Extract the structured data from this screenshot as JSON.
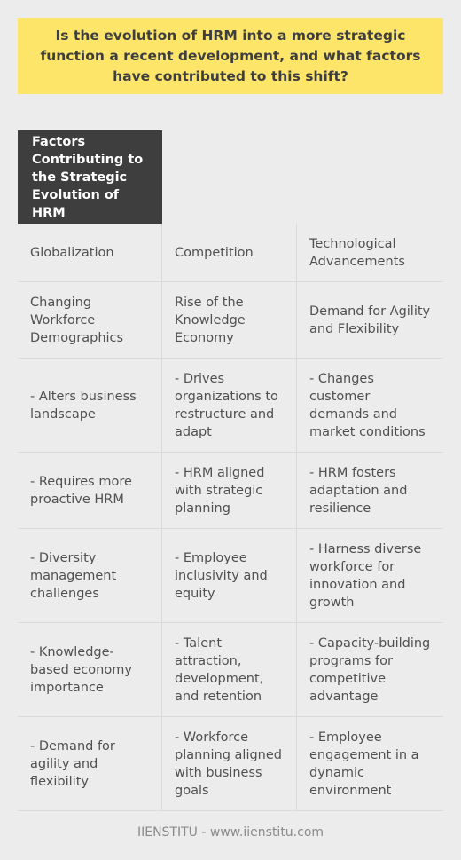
{
  "question": "Is the evolution of HRM into a more strategic function a recent development, and what factors have contributed to this shift?",
  "table": {
    "header": "Factors Contributing to the Strategic Evolution of HRM",
    "rows": [
      [
        "Globalization",
        "Competition",
        "Technological Advancements"
      ],
      [
        "Changing Workforce Demographics",
        "Rise of the Knowledge Economy",
        "Demand for Agility and Flexibility"
      ],
      [
        "- Alters business landscape",
        "- Drives organizations to restructure and adapt",
        "- Changes customer demands and market conditions"
      ],
      [
        "- Requires more proactive HRM",
        "- HRM aligned with strategic planning",
        "- HRM fosters adaptation and resilience"
      ],
      [
        "- Diversity management challenges",
        "- Employee inclusivity and equity",
        "- Harness diverse workforce for innovation and growth"
      ],
      [
        "- Knowledge-based economy importance",
        "- Talent attraction, development, and retention",
        "- Capacity-building programs for competitive advantage"
      ],
      [
        "- Demand for agility and flexibility",
        "- Workforce planning aligned with business goals",
        "- Employee engagement in a dynamic environment"
      ]
    ]
  },
  "footer": "IIENSTITU - www.iienstitu.com"
}
